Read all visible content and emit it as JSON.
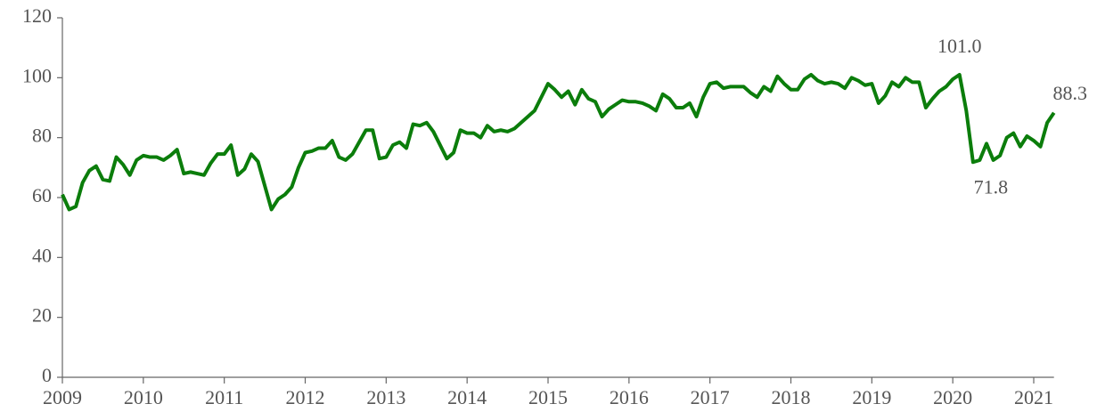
{
  "chart_data": {
    "type": "line",
    "categories": [
      "2009",
      null,
      null,
      null,
      null,
      null,
      null,
      null,
      null,
      null,
      null,
      null,
      "2010",
      null,
      null,
      null,
      null,
      null,
      null,
      null,
      null,
      null,
      null,
      null,
      "2011",
      null,
      null,
      null,
      null,
      null,
      null,
      null,
      null,
      null,
      null,
      null,
      "2012",
      null,
      null,
      null,
      null,
      null,
      null,
      null,
      null,
      null,
      null,
      null,
      "2013",
      null,
      null,
      null,
      null,
      null,
      null,
      null,
      null,
      null,
      null,
      null,
      "2014",
      null,
      null,
      null,
      null,
      null,
      null,
      null,
      null,
      null,
      null,
      null,
      "2015",
      null,
      null,
      null,
      null,
      null,
      null,
      null,
      null,
      null,
      null,
      null,
      "2016",
      null,
      null,
      null,
      null,
      null,
      null,
      null,
      null,
      null,
      null,
      null,
      "2017",
      null,
      null,
      null,
      null,
      null,
      null,
      null,
      null,
      null,
      null,
      null,
      "2018",
      null,
      null,
      null,
      null,
      null,
      null,
      null,
      null,
      null,
      null,
      null,
      "2019",
      null,
      null,
      null,
      null,
      null,
      null,
      null,
      null,
      null,
      null,
      null,
      "2020",
      null,
      null,
      null,
      null,
      null,
      null,
      null,
      null,
      null,
      null,
      null,
      "2021",
      null,
      null,
      null
    ],
    "values": [
      61,
      56,
      57,
      65,
      69,
      70.5,
      66,
      65.5,
      73.5,
      71,
      67.5,
      72.5,
      74,
      73.5,
      73.5,
      72.5,
      74,
      76,
      68,
      68.5,
      68,
      67.5,
      71.5,
      74.5,
      74.5,
      77.5,
      67.5,
      69.5,
      74.5,
      72,
      64,
      56,
      59.5,
      61,
      63.5,
      70,
      75,
      75.5,
      76.5,
      76.5,
      79,
      73.5,
      72.5,
      74.5,
      78.5,
      82.5,
      82.5,
      73,
      73.5,
      77.5,
      78.5,
      76.5,
      84.5,
      84,
      85,
      82,
      77.5,
      73,
      75,
      82.5,
      81.5,
      81.5,
      80,
      84,
      82,
      82.5,
      82,
      83,
      85,
      87,
      89,
      93.5,
      98,
      96,
      93.5,
      95.5,
      91,
      96,
      93,
      92,
      87,
      89.5,
      91,
      92.5,
      92,
      92,
      91.5,
      90.5,
      89,
      94.5,
      93,
      90,
      90,
      91.5,
      87,
      93.5,
      98,
      98.5,
      96.5,
      97,
      97,
      97,
      95,
      93.5,
      97,
      95.5,
      100.5,
      98,
      96,
      96,
      99.5,
      101,
      99,
      98,
      98.5,
      98,
      96.5,
      100,
      99,
      97.5,
      98,
      91.5,
      94,
      98.5,
      97,
      100,
      98.5,
      98.5,
      90,
      93,
      95.5,
      97,
      99.5,
      101,
      89,
      71.8,
      72.5,
      78,
      72.5,
      74,
      80,
      81.5,
      77,
      80.5,
      79,
      77,
      85,
      88.3
    ],
    "value_labels": [
      null,
      null,
      null,
      null,
      null,
      null,
      null,
      null,
      null,
      null,
      null,
      null,
      null,
      null,
      null,
      null,
      null,
      null,
      null,
      null,
      null,
      null,
      null,
      null,
      null,
      null,
      null,
      null,
      null,
      null,
      null,
      null,
      null,
      null,
      null,
      null,
      null,
      null,
      null,
      null,
      null,
      null,
      null,
      null,
      null,
      null,
      null,
      null,
      null,
      null,
      null,
      null,
      null,
      null,
      null,
      null,
      null,
      null,
      null,
      null,
      null,
      null,
      null,
      null,
      null,
      null,
      null,
      null,
      null,
      null,
      null,
      null,
      null,
      null,
      null,
      null,
      null,
      null,
      null,
      null,
      null,
      null,
      null,
      null,
      null,
      null,
      null,
      null,
      null,
      null,
      null,
      null,
      null,
      null,
      null,
      null,
      null,
      null,
      null,
      null,
      null,
      null,
      null,
      null,
      null,
      null,
      null,
      null,
      null,
      null,
      null,
      null,
      null,
      null,
      null,
      null,
      null,
      null,
      null,
      null,
      null,
      null,
      null,
      null,
      null,
      null,
      null,
      null,
      null,
      null,
      null,
      null,
      null,
      "101.0",
      null,
      "71.8",
      null,
      null,
      null,
      null,
      null,
      null,
      null,
      null,
      null,
      null,
      null,
      "88.3"
    ],
    "color": "#0b7d0b",
    "ylim": [
      0,
      120
    ],
    "yticks": [
      0,
      20,
      40,
      60,
      80,
      100,
      120
    ],
    "grid": false
  }
}
